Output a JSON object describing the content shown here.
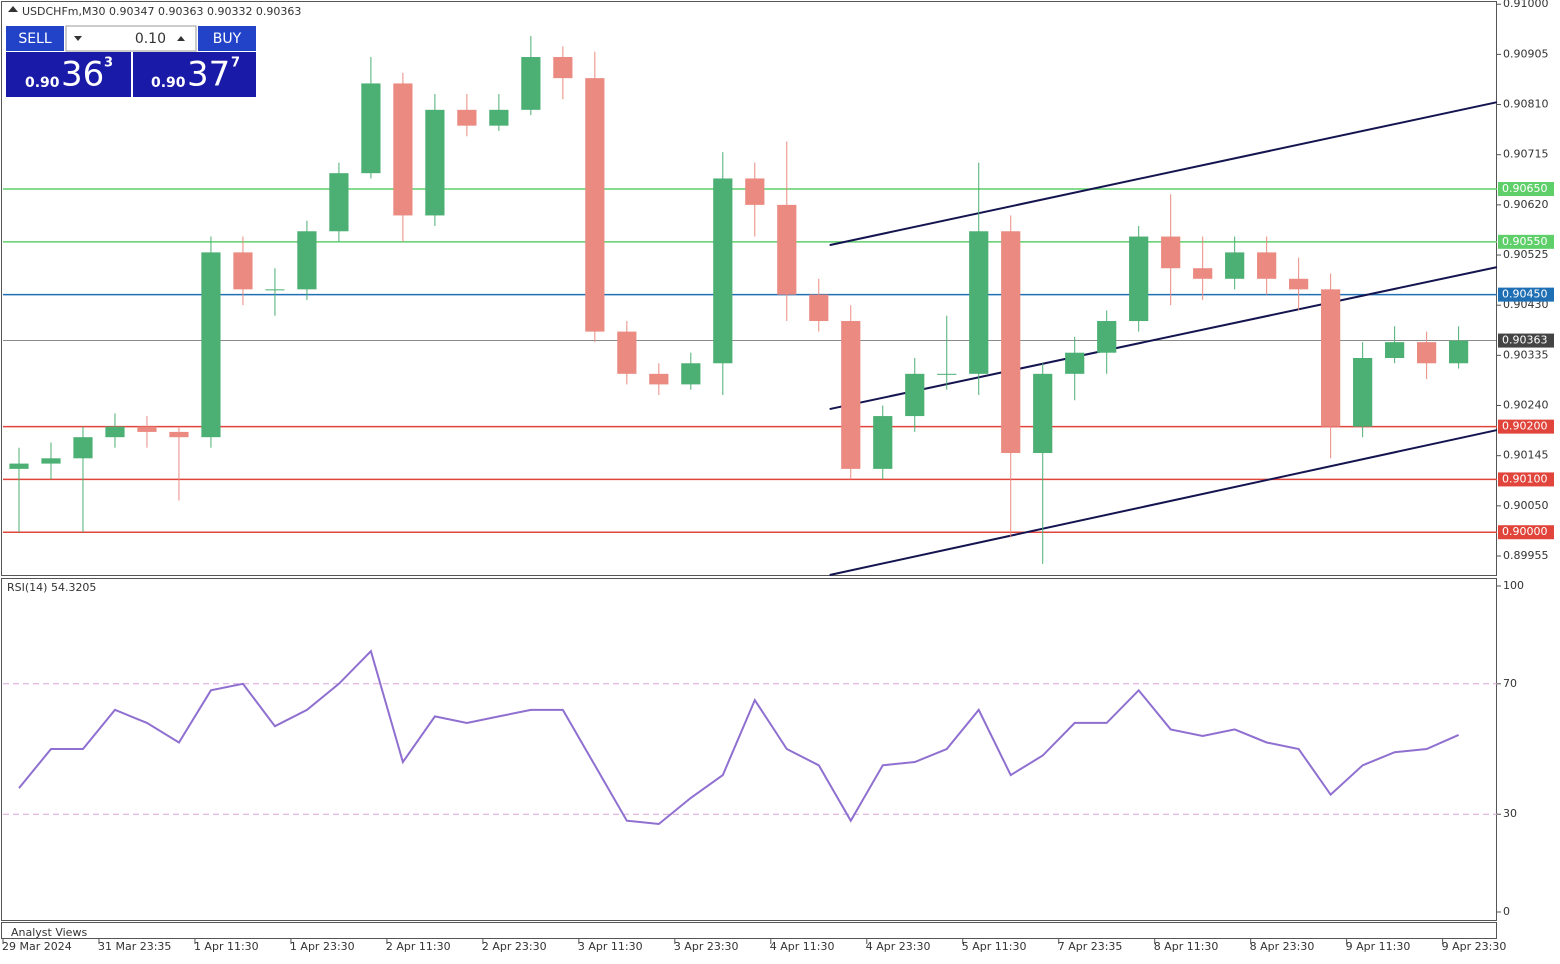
{
  "chart_data": {
    "type": "candlestick",
    "title": "USDCHFm,M30  0.90347 0.90363 0.90332 0.90363",
    "candles": {
      "open": [
        0.9012,
        0.9013,
        0.9014,
        0.9018,
        0.902,
        0.9019,
        0.9018,
        0.9053,
        0.9046,
        0.9046,
        0.9057,
        0.9068,
        0.9085,
        0.906,
        0.908,
        0.9077,
        0.908,
        0.909,
        0.9086,
        0.9038,
        0.903,
        0.9028,
        0.9032,
        0.9067,
        0.9062,
        0.9045,
        0.904,
        0.9012,
        0.9022,
        0.903,
        0.903,
        0.9057,
        0.9015,
        0.903,
        0.9034,
        0.904,
        0.9056,
        0.905,
        0.9048,
        0.9053,
        0.9048,
        0.9046,
        0.902,
        0.9033,
        0.9036,
        0.9032
      ],
      "high": [
        0.9016,
        0.9017,
        0.902,
        0.90225,
        0.9022,
        0.902,
        0.9056,
        0.9056,
        0.905,
        0.9059,
        0.907,
        0.909,
        0.9087,
        0.9083,
        0.9083,
        0.9083,
        0.9094,
        0.9092,
        0.9091,
        0.904,
        0.9032,
        0.9034,
        0.9072,
        0.907,
        0.9074,
        0.9048,
        0.9043,
        0.9024,
        0.9033,
        0.9041,
        0.907,
        0.906,
        0.9032,
        0.9037,
        0.9042,
        0.9058,
        0.9064,
        0.9056,
        0.9056,
        0.9056,
        0.9052,
        0.9049,
        0.9036,
        0.9039,
        0.9038,
        0.9039
      ],
      "low": [
        0.9,
        0.901,
        0.9,
        0.9016,
        0.9016,
        0.9006,
        0.9016,
        0.9043,
        0.9041,
        0.9044,
        0.9055,
        0.9067,
        0.9055,
        0.9058,
        0.9075,
        0.9076,
        0.9079,
        0.9082,
        0.9036,
        0.9028,
        0.9026,
        0.9027,
        0.9026,
        0.9056,
        0.904,
        0.9038,
        0.901,
        0.901,
        0.9019,
        0.9027,
        0.9026,
        0.8999,
        0.8994,
        0.9025,
        0.903,
        0.9038,
        0.9043,
        0.9044,
        0.9046,
        0.9045,
        0.9042,
        0.9014,
        0.9018,
        0.9032,
        0.9029,
        0.9031
      ],
      "close": [
        0.9013,
        0.9014,
        0.9018,
        0.902,
        0.9019,
        0.9018,
        0.9053,
        0.9046,
        0.9046,
        0.9057,
        0.9068,
        0.9085,
        0.906,
        0.908,
        0.9077,
        0.908,
        0.909,
        0.9086,
        0.9038,
        0.903,
        0.9028,
        0.9032,
        0.9067,
        0.9062,
        0.9045,
        0.904,
        0.9012,
        0.9022,
        0.903,
        0.903,
        0.9057,
        0.9015,
        0.903,
        0.9034,
        0.904,
        0.9056,
        0.905,
        0.9048,
        0.9053,
        0.9048,
        0.9046,
        0.902,
        0.9033,
        0.9036,
        0.9032,
        0.90363
      ],
      "up_color": "#4caf73",
      "down_color": "#ea8a80"
    },
    "xlim": [
      0,
      46.7
    ],
    "xticks": [
      {
        "value": 0,
        "label": "29 Mar 2024"
      },
      {
        "value": 3,
        "label": "31 Mar 23:35"
      },
      {
        "value": 6,
        "label": "1 Apr 11:30"
      },
      {
        "value": 9,
        "label": "1 Apr 23:30"
      },
      {
        "value": 12,
        "label": "2 Apr 11:30"
      },
      {
        "value": 15,
        "label": "2 Apr 23:30"
      },
      {
        "value": 18,
        "label": "3 Apr 11:30"
      },
      {
        "value": 21,
        "label": "3 Apr 23:30"
      },
      {
        "value": 24,
        "label": "4 Apr 11:30"
      },
      {
        "value": 27,
        "label": "4 Apr 23:30"
      },
      {
        "value": 30,
        "label": "5 Apr 11:30"
      },
      {
        "value": 33,
        "label": "7 Apr 23:35"
      },
      {
        "value": 36,
        "label": "8 Apr 11:30"
      },
      {
        "value": 39,
        "label": "8 Apr 23:30"
      },
      {
        "value": 42,
        "label": "9 Apr 11:30"
      },
      {
        "value": 45,
        "label": "9 Apr 23:30"
      }
    ],
    "ylim": [
      0.89919,
      0.91008
    ],
    "yticks": [
      {
        "value": 0.91,
        "label": "0.91000"
      },
      {
        "value": 0.90905,
        "label": "0.90905"
      },
      {
        "value": 0.9081,
        "label": "0.90810"
      },
      {
        "value": 0.90715,
        "label": "0.90715"
      },
      {
        "value": 0.9062,
        "label": "0.90620"
      },
      {
        "value": 0.90525,
        "label": "0.90525"
      },
      {
        "value": 0.9043,
        "label": "0.90430"
      },
      {
        "value": 0.90335,
        "label": "0.90335"
      },
      {
        "value": 0.9024,
        "label": "0.90240"
      },
      {
        "value": 0.90145,
        "label": "0.90145"
      },
      {
        "value": 0.9005,
        "label": "0.90050"
      },
      {
        "value": 0.89955,
        "label": "0.89955"
      }
    ],
    "levels": [
      {
        "value": 0.9065,
        "label": "0.90650",
        "color": "#5fcf6a"
      },
      {
        "value": 0.9055,
        "label": "0.90550",
        "color": "#5fcf6a"
      },
      {
        "value": 0.9045,
        "label": "0.90450",
        "color": "#1f6fb5"
      },
      {
        "value": 0.90363,
        "label": "0.90363",
        "color": "#444444"
      },
      {
        "value": 0.902,
        "label": "0.90200",
        "color": "#e0443a"
      },
      {
        "value": 0.901,
        "label": "0.90100",
        "color": "#e0443a"
      },
      {
        "value": 0.9,
        "label": "0.90000",
        "color": "#e0443a"
      }
    ],
    "trendlines": [
      {
        "x": [
          25.84,
          46.7
        ],
        "y": [
          0.905438,
          0.908145
        ]
      },
      {
        "x": [
          25.84,
          46.7
        ],
        "y": [
          0.902333,
          0.905021
        ]
      },
      {
        "x": [
          25.84,
          46.7
        ],
        "y": [
          0.89919,
          0.901935
        ]
      }
    ],
    "rsi": {
      "label": "RSI(14) 54.3205",
      "color": "#8f6fd0",
      "values": [
        38,
        50,
        50,
        62,
        58,
        52,
        68,
        70,
        57,
        62,
        70,
        80,
        46,
        60,
        58,
        60,
        62,
        62,
        45,
        28,
        27,
        35,
        42,
        65,
        50,
        45,
        28,
        45,
        46,
        50,
        62,
        42,
        48,
        58,
        58,
        68,
        56,
        54,
        56,
        52,
        50,
        36,
        45,
        49,
        50,
        54.3205
      ],
      "ylim": [
        0,
        100
      ],
      "yticks": [
        0,
        30,
        70,
        100
      ],
      "levels": [
        30,
        70
      ]
    }
  },
  "trade_panel": {
    "sell": "SELL",
    "buy": "BUY",
    "lot": "0.10",
    "bid": {
      "prefix": "0.90",
      "big": "36",
      "small": "3"
    },
    "ask": {
      "prefix": "0.90",
      "big": "37",
      "small": "7"
    }
  },
  "footer": {
    "analyst": "Analyst Views"
  }
}
